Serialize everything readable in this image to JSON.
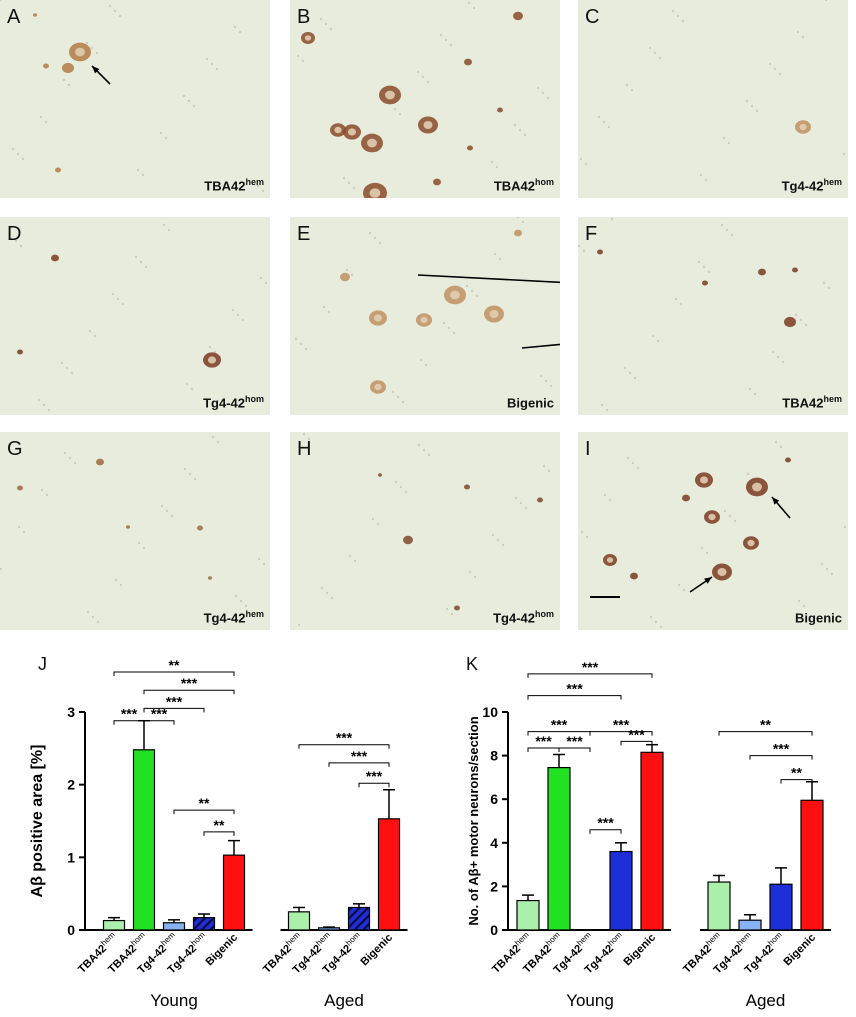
{
  "panels": [
    {
      "label": "A",
      "genotype": "TBA42",
      "sup": "hem"
    },
    {
      "label": "B",
      "genotype": "TBA42",
      "sup": "hom"
    },
    {
      "label": "C",
      "genotype": "Tg4-42",
      "sup": "hem"
    },
    {
      "label": "D",
      "genotype": "Tg4-42",
      "sup": "hom"
    },
    {
      "label": "E",
      "genotype": "Bigenic",
      "sup": ""
    },
    {
      "label": "F",
      "genotype": "TBA42",
      "sup": "hem"
    },
    {
      "label": "G",
      "genotype": "Tg4-42",
      "sup": "hem"
    },
    {
      "label": "H",
      "genotype": "Tg4-42",
      "sup": "hom"
    },
    {
      "label": "I",
      "genotype": "Bigenic",
      "sup": ""
    }
  ],
  "chart_data": [
    {
      "type": "bar",
      "panel": "J",
      "ylabel": "Aβ positive area [%]",
      "ylim": [
        0,
        3
      ],
      "yticks": [
        0,
        1,
        2,
        3
      ],
      "categories": [
        {
          "name": "TBA42",
          "sup": "hem"
        },
        {
          "name": "TBA42",
          "sup": "hom"
        },
        {
          "name": "Tg4-42",
          "sup": "hem"
        },
        {
          "name": "Tg4-42",
          "sup": "hom"
        },
        {
          "name": "Bigenic",
          "sup": ""
        },
        {
          "name": "TBA42",
          "sup": "hem"
        },
        {
          "name": "Tg4-42",
          "sup": "hem"
        },
        {
          "name": "Tg4-42",
          "sup": "hom"
        },
        {
          "name": "Bigenic",
          "sup": ""
        }
      ],
      "groups": [
        {
          "label": "Young",
          "count": 5
        },
        {
          "label": "Aged",
          "count": 4
        }
      ],
      "values": [
        0.13,
        2.48,
        0.1,
        0.17,
        1.03,
        0.25,
        0.03,
        0.31,
        1.53
      ],
      "errors": [
        0.04,
        0.4,
        0.04,
        0.05,
        0.2,
        0.06,
        0.01,
        0.05,
        0.4
      ],
      "colors": [
        "#aaf0aa",
        "#22e022",
        "#88b2f4",
        "#1f2fd8",
        "#ff1010",
        "#aaf0aa",
        "#88b2f4",
        "#1f2fd8",
        "#ff1010"
      ],
      "hatched": [
        false,
        false,
        false,
        true,
        false,
        false,
        false,
        true,
        false
      ],
      "significance": [
        {
          "from": 0,
          "to": 4,
          "y": 3.55,
          "label": "**"
        },
        {
          "from": 1,
          "to": 4,
          "y": 3.3,
          "label": "***"
        },
        {
          "from": 1,
          "to": 3,
          "y": 3.05,
          "label": "***"
        },
        {
          "from": 0,
          "to": 1,
          "y": 2.88,
          "label": "***"
        },
        {
          "from": 1,
          "to": 2,
          "y": 2.88,
          "label": "***"
        },
        {
          "from": 2,
          "to": 4,
          "y": 1.65,
          "label": "**"
        },
        {
          "from": 3,
          "to": 4,
          "y": 1.35,
          "label": "**"
        },
        {
          "from": 5,
          "to": 8,
          "y": 2.55,
          "label": "***"
        },
        {
          "from": 6,
          "to": 8,
          "y": 2.3,
          "label": "***"
        },
        {
          "from": 7,
          "to": 8,
          "y": 2.02,
          "label": "***"
        }
      ]
    },
    {
      "type": "bar",
      "panel": "K",
      "ylabel": "No. of Aβ+ motor neurons/section",
      "ylim": [
        0,
        10
      ],
      "yticks": [
        0,
        2,
        4,
        6,
        8,
        10
      ],
      "categories": [
        {
          "name": "TBA42",
          "sup": "hem"
        },
        {
          "name": "TBA42",
          "sup": "hom"
        },
        {
          "name": "Tg4-42",
          "sup": "hem"
        },
        {
          "name": "Tg4-42",
          "sup": "hom"
        },
        {
          "name": "Bigenic",
          "sup": ""
        },
        {
          "name": "TBA42",
          "sup": "hem"
        },
        {
          "name": "Tg4-42",
          "sup": "hem"
        },
        {
          "name": "Tg4-42",
          "sup": "hom"
        },
        {
          "name": "Bigenic",
          "sup": ""
        }
      ],
      "groups": [
        {
          "label": "Young",
          "count": 5
        },
        {
          "label": "Aged",
          "count": 4
        }
      ],
      "values": [
        1.35,
        7.45,
        0,
        3.6,
        8.15,
        2.2,
        0.45,
        2.1,
        5.95
      ],
      "errors": [
        0.25,
        0.6,
        0,
        0.4,
        0.35,
        0.3,
        0.25,
        0.75,
        0.85
      ],
      "colors": [
        "#aaf0aa",
        "#22e022",
        "#88b2f4",
        "#1f2fd8",
        "#ff1010",
        "#aaf0aa",
        "#88b2f4",
        "#1f2fd8",
        "#ff1010"
      ],
      "hatched": [
        false,
        false,
        false,
        false,
        false,
        false,
        false,
        false,
        false
      ],
      "significance": [
        {
          "from": 0,
          "to": 4,
          "y": 11.75,
          "label": "***"
        },
        {
          "from": 0,
          "to": 3,
          "y": 10.75,
          "label": "***"
        },
        {
          "from": 0,
          "to": 2,
          "y": 9.1,
          "label": "***"
        },
        {
          "from": 2,
          "to": 4,
          "y": 9.1,
          "label": "***"
        },
        {
          "from": 0,
          "to": 1,
          "y": 8.35,
          "label": "***"
        },
        {
          "from": 1,
          "to": 2,
          "y": 8.35,
          "label": "***"
        },
        {
          "from": 3,
          "to": 4,
          "y": 8.65,
          "label": "***"
        },
        {
          "from": 2,
          "to": 3,
          "y": 4.6,
          "label": "***"
        },
        {
          "from": 5,
          "to": 8,
          "y": 9.1,
          "label": "**"
        },
        {
          "from": 6,
          "to": 8,
          "y": 8.0,
          "label": "***"
        },
        {
          "from": 7,
          "to": 8,
          "y": 6.9,
          "label": "**"
        }
      ]
    }
  ]
}
